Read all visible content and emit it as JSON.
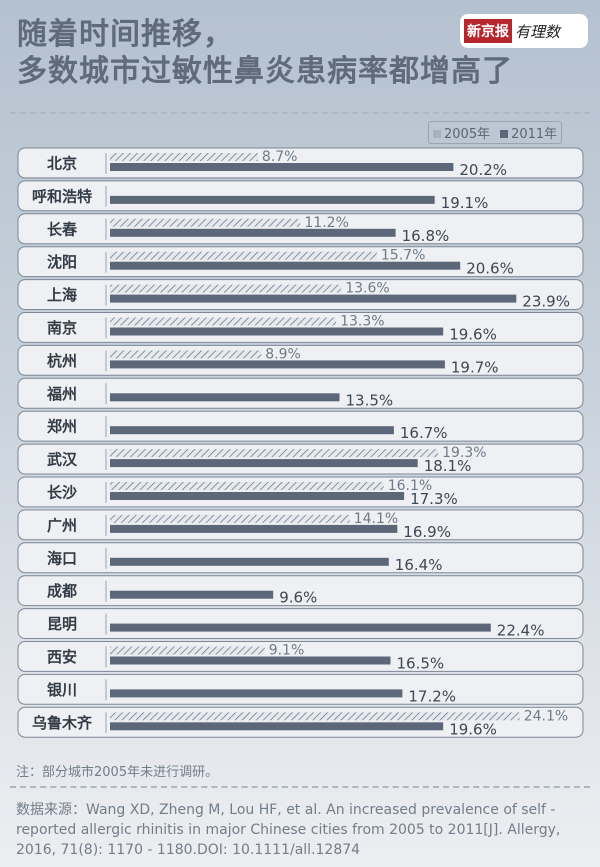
{
  "title_line1": "随着时间推移，",
  "title_line2": "多数城市过敏性鼻炎患病率都增高了",
  "logo": {
    "brand": "新京报",
    "sub": "有理数"
  },
  "note": "注：部分城市2005年未进行调研。",
  "source": "数据来源：Wang XD, Zheng M, Lou HF, et al. An increased prevalence of self - reported allergic rhinitis in major Chinese cities from 2005 to 2011[J]. Allergy, 2016, 71(8): 1170 - 1180.DOI: 10.1111/all.12874",
  "chart_data": {
    "type": "bar",
    "orientation": "horizontal",
    "unit": "%",
    "legend_position": "top-right",
    "categories": [
      "北京",
      "呼和浩特",
      "长春",
      "沈阳",
      "上海",
      "南京",
      "杭州",
      "福州",
      "郑州",
      "武汉",
      "长沙",
      "广州",
      "海口",
      "成都",
      "昆明",
      "西安",
      "银川",
      "乌鲁木齐"
    ],
    "series": [
      {
        "name": "2005年",
        "color": "#d9dee5",
        "pattern": "hatched",
        "values": [
          8.7,
          null,
          11.2,
          15.7,
          13.6,
          13.3,
          8.9,
          null,
          null,
          19.3,
          16.1,
          14.1,
          null,
          null,
          null,
          9.1,
          null,
          24.1
        ]
      },
      {
        "name": "2011年",
        "color": "#5c6879",
        "values": [
          20.2,
          19.1,
          16.8,
          20.6,
          23.9,
          19.6,
          19.7,
          13.5,
          16.7,
          18.1,
          17.3,
          16.9,
          16.4,
          9.6,
          22.4,
          16.5,
          17.2,
          19.6
        ]
      }
    ]
  }
}
